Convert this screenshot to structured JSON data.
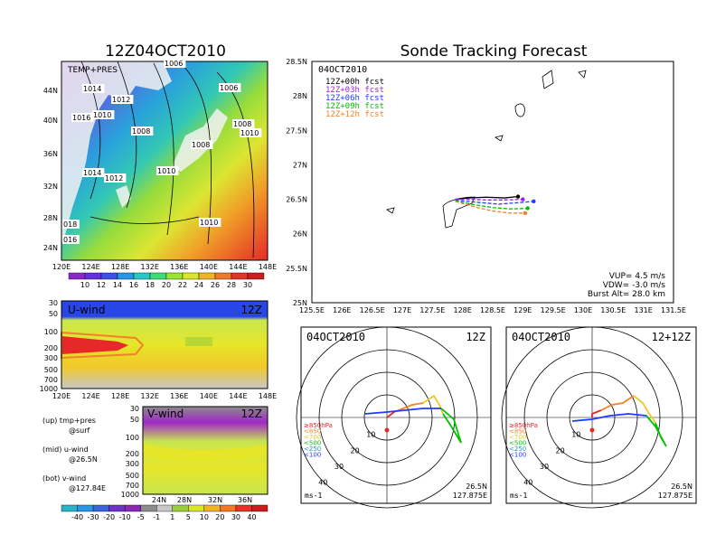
{
  "main_title": "12Z04OCT2010",
  "tracking_title": "Sonde Tracking Forecast",
  "date_label": "04OCT2010",
  "colors": {
    "track_00h": "#000000",
    "track_03h": "#a020f0",
    "track_06h": "#1e3cff",
    "track_09h": "#00c000",
    "track_12h": "#f08228"
  },
  "sst_panel": {
    "label": "TEMP+PRES",
    "x_ticks": [
      "120E",
      "124E",
      "128E",
      "132E",
      "136E",
      "140E",
      "144E",
      "148E"
    ],
    "y_ticks": [
      "44N",
      "40N",
      "36N",
      "32N",
      "28N",
      "24N"
    ],
    "pressure_labels": [
      "1006",
      "1014",
      "1012",
      "1010",
      "1016",
      "1008",
      "1006",
      "1008",
      "1010",
      "1008",
      "1014",
      "1012",
      "1010",
      "1010",
      "018",
      "016"
    ],
    "colorbar": [
      "10",
      "12",
      "14",
      "16",
      "18",
      "20",
      "22",
      "24",
      "26",
      "28",
      "30"
    ]
  },
  "uwind_panel": {
    "label": "U-wind",
    "time": "12Z",
    "y_ticks": [
      "30",
      "50",
      "100",
      "200",
      "300",
      "500",
      "700",
      "1000"
    ],
    "x_ticks": [
      "120E",
      "124E",
      "128E",
      "132E",
      "136E",
      "140E",
      "144E",
      "148E"
    ]
  },
  "vwind_panel": {
    "label": "V-wind",
    "time": "12Z",
    "y_ticks": [
      "30",
      "50",
      "100",
      "200",
      "300",
      "500",
      "700",
      "1000"
    ],
    "x_ticks": [
      "24N",
      "28N",
      "32N",
      "36N"
    ],
    "colorbar": [
      "-40",
      "-30",
      "-20",
      "-10",
      "-5",
      "-1",
      "1",
      "5",
      "10",
      "20",
      "30",
      "40"
    ]
  },
  "legend_text": [
    {
      "a": "(up) tmp+pres",
      "b": "@surf"
    },
    {
      "a": "(mid) u-wind",
      "b": "@26.5N"
    },
    {
      "a": "(bot) v-wind",
      "b": "@127.84E"
    }
  ],
  "track_map": {
    "date": "04OCT2010",
    "forecasts": [
      "12Z+00h fcst",
      "12Z+03h fcst",
      "12Z+06h fcst",
      "12Z+09h fcst",
      "12Z+12h fcst"
    ],
    "y_ticks": [
      "28.5N",
      "28N",
      "27.5N",
      "27N",
      "26.5N",
      "26N",
      "25.5N",
      "25N"
    ],
    "x_ticks": [
      "125.5E",
      "126E",
      "126.5E",
      "127E",
      "127.5E",
      "128E",
      "128.5E",
      "129E",
      "129.5E",
      "130E",
      "130.5E",
      "131E",
      "131.5E"
    ],
    "vup": "VUP= 4.5 m/s",
    "vdw": "VDW= -3.0 m/s",
    "burst": "Burst Alt= 28.0 km"
  },
  "hodographs": [
    {
      "date": "04OCT2010",
      "time": "12Z",
      "loc1": "26.5N",
      "loc2": "127.875E",
      "unit": "ms-1"
    },
    {
      "date": "04OCT2010",
      "time": "12+12Z",
      "loc1": "26.5N",
      "loc2": "127.875E",
      "unit": "ms-1"
    }
  ],
  "ring_labels": [
    "10",
    "20",
    "30",
    "40"
  ],
  "pressure_legend": [
    "≥850hPa",
    "<850",
    "<700",
    "<500",
    "<250",
    "<100"
  ],
  "chart_data": [
    {
      "type": "line",
      "title": "Sonde Tracking Forecast",
      "xlabel": "",
      "ylabel": "",
      "xlim": [
        125.5,
        131.5
      ],
      "ylim": [
        25.0,
        28.5
      ],
      "series": [
        {
          "name": "12Z+00h fcst",
          "x": [
            127.88,
            128.1,
            128.4,
            128.7,
            128.92
          ],
          "y": [
            26.5,
            26.52,
            26.53,
            26.52,
            26.54
          ]
        },
        {
          "name": "12Z+03h fcst",
          "x": [
            127.88,
            128.1,
            128.4,
            128.7,
            129.0
          ],
          "y": [
            26.5,
            26.5,
            26.49,
            26.49,
            26.5
          ]
        },
        {
          "name": "12Z+06h fcst",
          "x": [
            127.88,
            128.2,
            128.6,
            128.9,
            129.18
          ],
          "y": [
            26.49,
            26.46,
            26.43,
            26.45,
            26.47
          ]
        },
        {
          "name": "12Z+09h fcst",
          "x": [
            127.88,
            128.2,
            128.5,
            128.8,
            129.08
          ],
          "y": [
            26.48,
            26.42,
            26.38,
            26.36,
            26.37
          ]
        },
        {
          "name": "12Z+12h fcst",
          "x": [
            127.88,
            128.2,
            128.5,
            128.8,
            129.04
          ],
          "y": [
            26.47,
            26.39,
            26.33,
            26.3,
            26.3
          ]
        }
      ]
    }
  ]
}
